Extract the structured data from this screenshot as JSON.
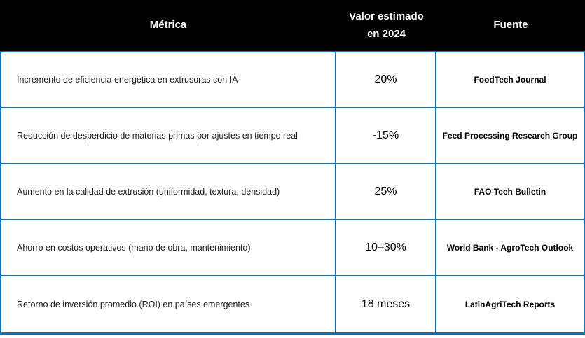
{
  "colors": {
    "border": "#0F72B9",
    "header_bg": "#000000",
    "header_text": "#FFFFFF"
  },
  "table": {
    "headers": {
      "metric": "Métrica",
      "value": "Valor estimado en 2024",
      "source": "Fuente"
    },
    "rows": [
      {
        "metric": "Incremento de eficiencia energética en extrusoras con IA",
        "value": "20%",
        "source": "FoodTech Journal"
      },
      {
        "metric": "Reducción de desperdicio de materias primas por ajustes en tiempo real",
        "value": "-15%",
        "source": "Feed Processing Research Group"
      },
      {
        "metric": "Aumento en la calidad de extrusión (uniformidad, textura, densidad)",
        "value": "25%",
        "source": "FAO Tech Bulletin"
      },
      {
        "metric": "Ahorro en costos operativos (mano de obra, mantenimiento)",
        "value": "10–30%",
        "source": "World Bank - AgroTech Outlook"
      },
      {
        "metric": "Retorno de inversión promedio (ROI) en países emergentes",
        "value": "18 meses",
        "source": "LatinAgriTech Reports"
      }
    ]
  }
}
